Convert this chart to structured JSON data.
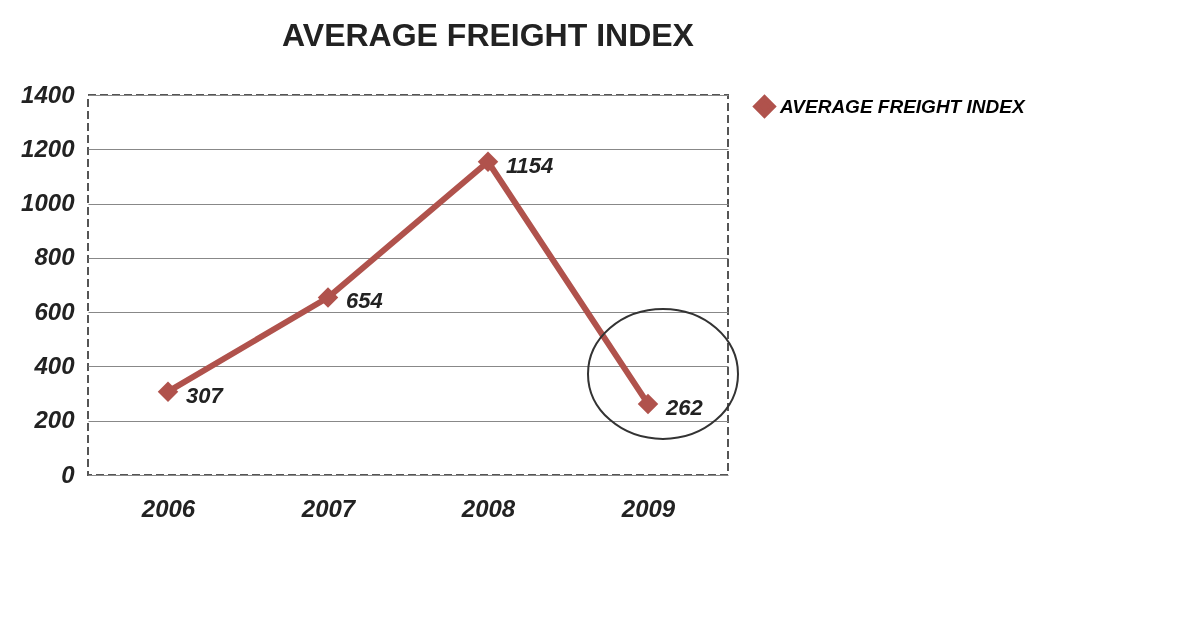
{
  "chart_data": {
    "type": "line",
    "title": "AVERAGE FREIGHT INDEX",
    "categories": [
      "2006",
      "2007",
      "2008",
      "2009"
    ],
    "series": [
      {
        "name": "AVERAGE FREIGHT INDEX",
        "color": "#b0524c",
        "values": [
          307,
          654,
          1154,
          262
        ]
      }
    ],
    "ylim": [
      0,
      1400
    ],
    "yticks": [
      0,
      200,
      400,
      600,
      800,
      1000,
      1200,
      1400
    ],
    "grid": "y",
    "legend": "right",
    "marker": "diamond",
    "data_labels": true
  }
}
